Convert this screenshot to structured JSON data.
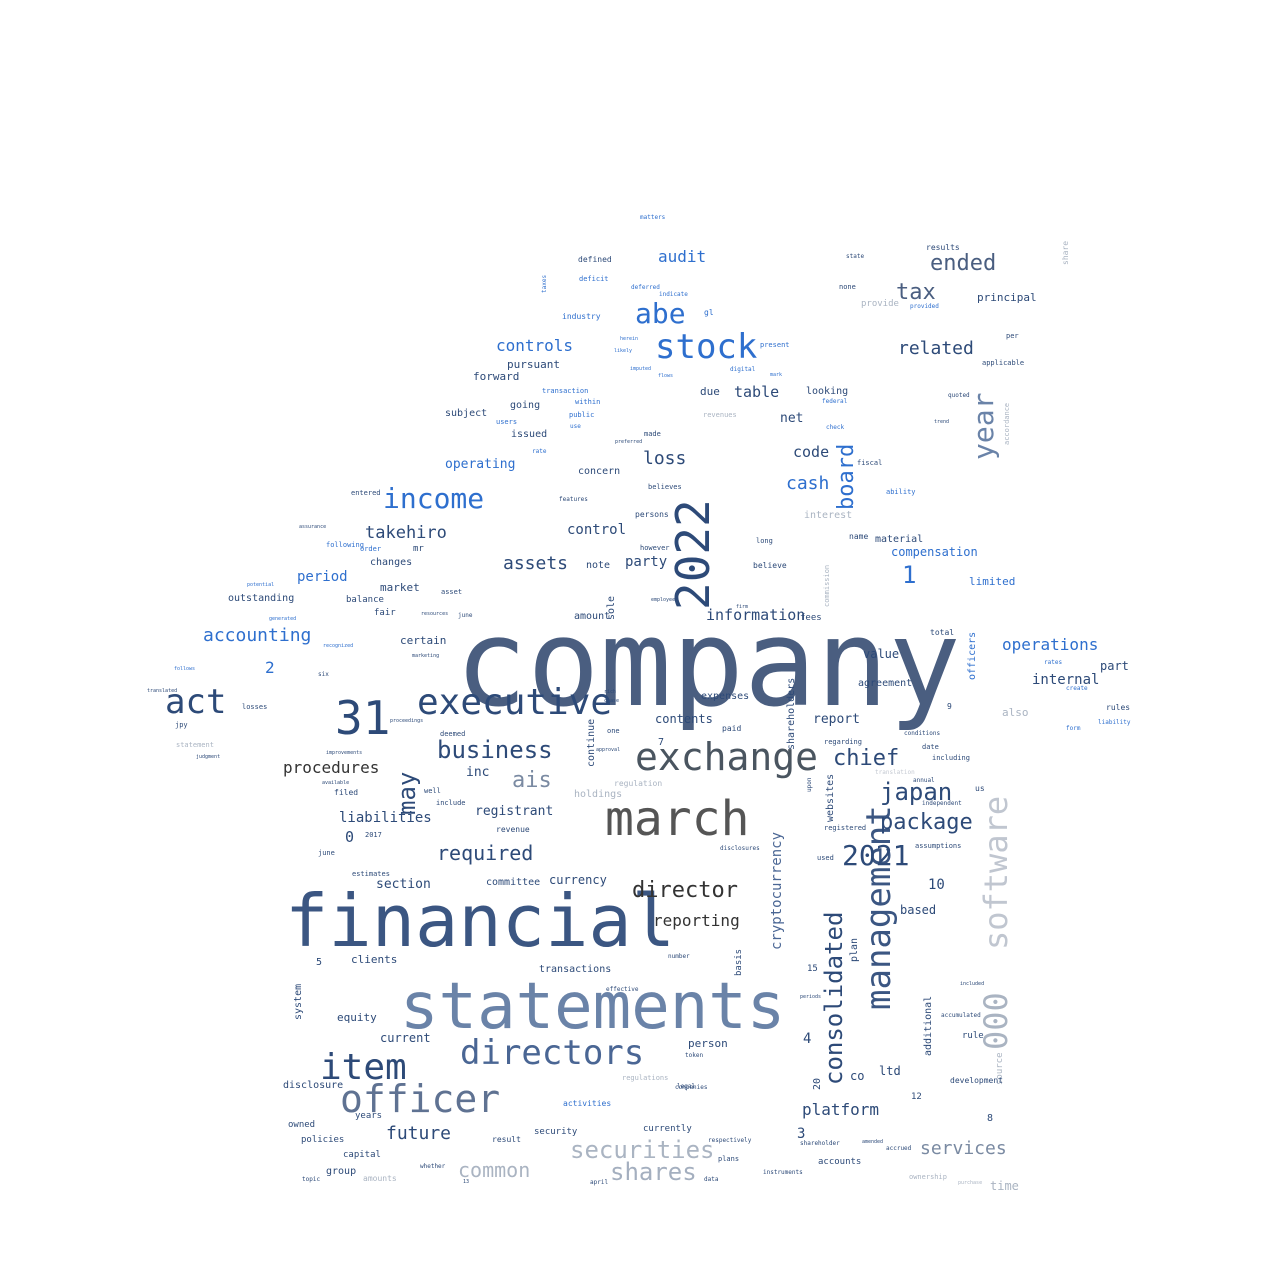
{
  "palette": {
    "dark_navy": "#2d4a78",
    "slate": "#4a5e80",
    "blue": "#2e6fce",
    "steel": "#5f7fa8",
    "gray": "#555555",
    "light": "#aab4c2",
    "pale": "#c4c9d2"
  },
  "words": [
    {
      "w": "company",
      "c": "#4a5e80"
    },
    {
      "w": "financial",
      "c": "#3b5682"
    },
    {
      "w": "statements",
      "c": "#6a83a8"
    },
    {
      "w": "march",
      "c": "#555555"
    },
    {
      "w": "exchange",
      "c": "#4a5560"
    },
    {
      "w": "executive",
      "c": "#2d4a78"
    },
    {
      "w": "2022",
      "c": "#2d4a78"
    },
    {
      "w": "31",
      "c": "#2d4a78"
    },
    {
      "w": "directors",
      "c": "#4a6694"
    },
    {
      "w": "item",
      "c": "#2d4a78"
    },
    {
      "w": "officer",
      "c": "#5f7292"
    },
    {
      "w": "software",
      "c": "#c0c6d0"
    },
    {
      "w": "management",
      "c": "#3b5682"
    },
    {
      "w": "stock",
      "c": "#2e6fce"
    },
    {
      "w": "act",
      "c": "#2d4a78"
    },
    {
      "w": "income",
      "c": "#2e6fce"
    },
    {
      "w": "abe",
      "c": "#2e6fce"
    },
    {
      "w": "business",
      "c": "#2d4a78"
    },
    {
      "w": "year",
      "c": "#6a83a8"
    },
    {
      "w": "consolidated",
      "c": "#2d4a78"
    },
    {
      "w": "2021",
      "c": "#2d4a78"
    },
    {
      "w": "securities",
      "c": "#aab4c2"
    },
    {
      "w": "shares",
      "c": "#a4afbf"
    },
    {
      "w": "000",
      "c": "#aab4c2"
    },
    {
      "w": "package",
      "c": "#2d4a78"
    },
    {
      "w": "japan",
      "c": "#2d4a78"
    },
    {
      "w": "chief",
      "c": "#2d4a78"
    },
    {
      "w": "ais",
      "c": "#7a8aa2"
    },
    {
      "w": "director",
      "c": "#333333"
    },
    {
      "w": "services",
      "c": "#7a8aa2"
    },
    {
      "w": "common",
      "c": "#aab4c2"
    },
    {
      "w": "tax",
      "c": "#4a5e80"
    },
    {
      "w": "ended",
      "c": "#4a5e80"
    },
    {
      "w": "related",
      "c": "#2d4a78"
    },
    {
      "w": "board",
      "c": "#2e6fce"
    },
    {
      "w": "required",
      "c": "#2d4a78"
    },
    {
      "w": "future",
      "c": "#2d4a78"
    },
    {
      "w": "may",
      "c": "#2d4a78"
    },
    {
      "w": "platform",
      "c": "#2d4a78"
    },
    {
      "w": "procedures",
      "c": "#333333"
    },
    {
      "w": "accounting",
      "c": "#2e6fce"
    },
    {
      "w": "cash",
      "c": "#2e6fce"
    },
    {
      "w": "loss",
      "c": "#2d4a78"
    },
    {
      "w": "assets",
      "c": "#2d4a78"
    },
    {
      "w": "audit",
      "c": "#2e6fce"
    },
    {
      "w": "controls",
      "c": "#2e6fce"
    },
    {
      "w": "takehiro",
      "c": "#2d4a78"
    },
    {
      "w": "1",
      "c": "#2e6fce"
    },
    {
      "w": "cryptocurrency",
      "c": "#4a6694"
    },
    {
      "w": "operations",
      "c": "#2e6fce"
    },
    {
      "w": "information",
      "c": "#2d4a78"
    },
    {
      "w": "reporting",
      "c": "#333333"
    },
    {
      "w": "liabilities",
      "c": "#2d4a78"
    },
    {
      "w": "table",
      "c": "#2d4a78"
    },
    {
      "w": "period",
      "c": "#2e6fce"
    },
    {
      "w": "code",
      "c": "#2d4a78"
    },
    {
      "w": "section",
      "c": "#2d4a78"
    },
    {
      "w": "internal",
      "c": "#2d4a78"
    },
    {
      "w": "operating",
      "c": "#2e6fce"
    },
    {
      "w": "principal",
      "c": "#2d4a78"
    },
    {
      "w": "party",
      "c": "#2d4a78"
    },
    {
      "w": "net",
      "c": "#2d4a78"
    },
    {
      "w": "control",
      "c": "#2d4a78"
    },
    {
      "w": "value",
      "c": "#2d4a78"
    },
    {
      "w": "registrant",
      "c": "#2d4a78"
    },
    {
      "w": "report",
      "c": "#2d4a78"
    },
    {
      "w": "10",
      "c": "#2d4a78"
    },
    {
      "w": "contents",
      "c": "#2d4a78"
    },
    {
      "w": "compensation",
      "c": "#2e6fce"
    },
    {
      "w": "currency",
      "c": "#2d4a78"
    },
    {
      "w": "inc",
      "c": "#2d4a78"
    },
    {
      "w": "time",
      "c": "#aab4c2"
    },
    {
      "w": "pursuant",
      "c": "#2d4a78"
    },
    {
      "w": "limited",
      "c": "#2e6fce"
    },
    {
      "w": "forward",
      "c": "#2d4a78"
    },
    {
      "w": "agreement",
      "c": "#2d4a78"
    },
    {
      "w": "2",
      "c": "#2e6fce"
    },
    {
      "w": "0",
      "c": "#2d4a78"
    },
    {
      "w": "4",
      "c": "#2d4a78"
    },
    {
      "w": "3",
      "c": "#2d4a78"
    },
    {
      "w": "ltd",
      "c": "#2d4a78"
    },
    {
      "w": "co",
      "c": "#2d4a78"
    },
    {
      "w": "market",
      "c": "#2d4a78"
    },
    {
      "w": "equity",
      "c": "#2d4a78"
    },
    {
      "w": "current",
      "c": "#2d4a78"
    },
    {
      "w": "clients",
      "c": "#2d4a78"
    },
    {
      "w": "person",
      "c": "#2d4a78"
    },
    {
      "w": "committee",
      "c": "#2d4a78"
    },
    {
      "w": "transactions",
      "c": "#2d4a78"
    },
    {
      "w": "based",
      "c": "#2d4a78"
    },
    {
      "w": "part",
      "c": "#2d4a78"
    },
    {
      "w": "due",
      "c": "#2d4a78"
    },
    {
      "w": "going",
      "c": "#2d4a78"
    },
    {
      "w": "issued",
      "c": "#2d4a78"
    },
    {
      "w": "certain",
      "c": "#2d4a78"
    },
    {
      "w": "amount",
      "c": "#2d4a78"
    },
    {
      "w": "note",
      "c": "#2d4a78"
    },
    {
      "w": "changes",
      "c": "#2d4a78"
    },
    {
      "w": "outstanding",
      "c": "#2d4a78"
    },
    {
      "w": "subject",
      "c": "#2d4a78"
    },
    {
      "w": "concern",
      "c": "#2d4a78"
    },
    {
      "w": "also",
      "c": "#aab4c2"
    },
    {
      "w": "interest",
      "c": "#aab4c2"
    },
    {
      "w": "looking",
      "c": "#2d4a78"
    },
    {
      "w": "material",
      "c": "#2d4a78"
    },
    {
      "w": "expenses",
      "c": "#2d4a78"
    },
    {
      "w": "holdings",
      "c": "#aab4c2"
    },
    {
      "w": "disclosure",
      "c": "#2d4a78"
    },
    {
      "w": "officers",
      "c": "#2e6fce"
    },
    {
      "w": "additional",
      "c": "#2d4a78"
    },
    {
      "w": "websites",
      "c": "#2d4a78"
    },
    {
      "w": "shareholders",
      "c": "#2d4a78"
    },
    {
      "w": "continue",
      "c": "#2d4a78"
    },
    {
      "w": "system",
      "c": "#2d4a78"
    },
    {
      "w": "sole",
      "c": "#2d4a78"
    },
    {
      "w": "plan",
      "c": "#2d4a78"
    },
    {
      "w": "basis",
      "c": "#2d4a78"
    },
    {
      "w": "source",
      "c": "#aab4c2"
    },
    {
      "w": "mr",
      "c": "#2d4a78"
    },
    {
      "w": "balance",
      "c": "#2d4a78"
    },
    {
      "w": "fair",
      "c": "#2d4a78"
    },
    {
      "w": "filed",
      "c": "#2d4a78"
    },
    {
      "w": "owned",
      "c": "#2d4a78"
    },
    {
      "w": "policies",
      "c": "#2d4a78"
    },
    {
      "w": "capital",
      "c": "#2d4a78"
    },
    {
      "w": "group",
      "c": "#2d4a78"
    },
    {
      "w": "years",
      "c": "#2d4a78"
    },
    {
      "w": "security",
      "c": "#2d4a78"
    },
    {
      "w": "result",
      "c": "#2d4a78"
    },
    {
      "w": "currently",
      "c": "#2d4a78"
    },
    {
      "w": "accounts",
      "c": "#2d4a78"
    },
    {
      "w": "activities",
      "c": "#2e6fce"
    },
    {
      "w": "rule",
      "c": "#2d4a78"
    },
    {
      "w": "development",
      "c": "#2d4a78"
    },
    {
      "w": "fees",
      "c": "#2d4a78"
    },
    {
      "w": "believe",
      "c": "#2d4a78"
    },
    {
      "w": "amounts",
      "c": "#aab4c2"
    },
    {
      "w": "12",
      "c": "#2d4a78"
    },
    {
      "w": "15",
      "c": "#2d4a78"
    },
    {
      "w": "5",
      "c": "#2d4a78"
    },
    {
      "w": "7",
      "c": "#2d4a78"
    },
    {
      "w": "8",
      "c": "#2d4a78"
    },
    {
      "w": "9",
      "c": "#2d4a78"
    },
    {
      "w": "20",
      "c": "#2d4a78"
    },
    {
      "w": "entered",
      "c": "#2d4a78"
    },
    {
      "w": "following",
      "c": "#2e6fce"
    },
    {
      "w": "order",
      "c": "#2e6fce"
    },
    {
      "w": "transaction",
      "c": "#2e6fce"
    },
    {
      "w": "industry",
      "c": "#2e6fce"
    },
    {
      "w": "defined",
      "c": "#2d4a78"
    },
    {
      "w": "deficit",
      "c": "#2e6fce"
    },
    {
      "w": "deferred",
      "c": "#2e6fce"
    },
    {
      "w": "indicate",
      "c": "#2e6fce"
    },
    {
      "w": "results",
      "c": "#2d4a78"
    },
    {
      "w": "provide",
      "c": "#aab4c2"
    },
    {
      "w": "share",
      "c": "#aab4c2"
    },
    {
      "w": "none",
      "c": "#2d4a78"
    },
    {
      "w": "state",
      "c": "#2d4a78"
    },
    {
      "w": "fiscal",
      "c": "#2d4a78"
    },
    {
      "w": "ability",
      "c": "#2e6fce"
    },
    {
      "w": "federal",
      "c": "#2e6fce"
    },
    {
      "w": "present",
      "c": "#2e6fce"
    },
    {
      "w": "digital",
      "c": "#2e6fce"
    },
    {
      "w": "users",
      "c": "#2e6fce"
    },
    {
      "w": "public",
      "c": "#2e6fce"
    },
    {
      "w": "use",
      "c": "#2e6fce"
    },
    {
      "w": "within",
      "c": "#2e6fce"
    },
    {
      "w": "made",
      "c": "#2d4a78"
    },
    {
      "w": "believes",
      "c": "#2d4a78"
    },
    {
      "w": "persons",
      "c": "#2d4a78"
    },
    {
      "w": "however",
      "c": "#2d4a78"
    },
    {
      "w": "long",
      "c": "#2d4a78"
    },
    {
      "w": "name",
      "c": "#2d4a78"
    },
    {
      "w": "total",
      "c": "#2d4a78"
    },
    {
      "w": "date",
      "c": "#2d4a78"
    },
    {
      "w": "including",
      "c": "#2d4a78"
    },
    {
      "w": "annual",
      "c": "#2d4a78"
    },
    {
      "w": "us",
      "c": "#2d4a78"
    },
    {
      "w": "registered",
      "c": "#2d4a78"
    },
    {
      "w": "used",
      "c": "#2d4a78"
    },
    {
      "w": "assumptions",
      "c": "#2d4a78"
    },
    {
      "w": "accumulated",
      "c": "#2d4a78"
    },
    {
      "w": "paid",
      "c": "#2d4a78"
    },
    {
      "w": "one",
      "c": "#2d4a78"
    },
    {
      "w": "deemed",
      "c": "#2d4a78"
    },
    {
      "w": "include",
      "c": "#2d4a78"
    },
    {
      "w": "well",
      "c": "#2d4a78"
    },
    {
      "w": "revenue",
      "c": "#2d4a78"
    },
    {
      "w": "asset",
      "c": "#2d4a78"
    },
    {
      "w": "june",
      "c": "#2d4a78"
    },
    {
      "w": "2017",
      "c": "#2d4a78"
    },
    {
      "w": "estimates",
      "c": "#2d4a78"
    },
    {
      "w": "regulation",
      "c": "#aab4c2"
    },
    {
      "w": "regulations",
      "c": "#aab4c2"
    },
    {
      "w": "revenues",
      "c": "#aab4c2"
    },
    {
      "w": "statement",
      "c": "#aab4c2"
    },
    {
      "w": "commission",
      "c": "#aab4c2"
    },
    {
      "w": "accordance",
      "c": "#aab4c2"
    },
    {
      "w": "respectively",
      "c": "#2d4a78"
    },
    {
      "w": "plans",
      "c": "#2d4a78"
    },
    {
      "w": "april",
      "c": "#2d4a78"
    },
    {
      "w": "whether",
      "c": "#2d4a78"
    },
    {
      "w": "data",
      "c": "#2d4a78"
    },
    {
      "w": "topic",
      "c": "#2d4a78"
    },
    {
      "w": "ownership",
      "c": "#aab4c2"
    },
    {
      "w": "purchase",
      "c": "#aab4c2"
    },
    {
      "w": "instruments",
      "c": "#2d4a78"
    },
    {
      "w": "shareholder",
      "c": "#2d4a78"
    },
    {
      "w": "accrued",
      "c": "#2d4a78"
    },
    {
      "w": "effective",
      "c": "#2d4a78"
    },
    {
      "w": "number",
      "c": "#2d4a78"
    },
    {
      "w": "upon",
      "c": "#2d4a78"
    },
    {
      "w": "regarding",
      "c": "#2d4a78"
    },
    {
      "w": "independent",
      "c": "#2d4a78"
    },
    {
      "w": "matters",
      "c": "#2e6fce"
    },
    {
      "w": "taxes",
      "c": "#2e6fce"
    },
    {
      "w": "gl",
      "c": "#2e6fce"
    },
    {
      "w": "rate",
      "c": "#2e6fce"
    },
    {
      "w": "jpy",
      "c": "#2d4a78"
    },
    {
      "w": "losses",
      "c": "#2d4a78"
    },
    {
      "w": "generated",
      "c": "#2e6fce"
    },
    {
      "w": "recognized",
      "c": "#2e6fce"
    },
    {
      "w": "rates",
      "c": "#2e6fce"
    },
    {
      "w": "create",
      "c": "#2e6fce"
    },
    {
      "w": "rules",
      "c": "#2d4a78"
    },
    {
      "w": "liability",
      "c": "#2e6fce"
    },
    {
      "w": "form",
      "c": "#2e6fce"
    },
    {
      "w": "conditions",
      "c": "#2d4a78"
    },
    {
      "w": "provided",
      "c": "#2e6fce"
    },
    {
      "w": "applicable",
      "c": "#2d4a78"
    },
    {
      "w": "per",
      "c": "#2d4a78"
    },
    {
      "w": "quoted",
      "c": "#2d4a78"
    },
    {
      "w": "trend",
      "c": "#2d4a78"
    },
    {
      "w": "check",
      "c": "#2e6fce"
    },
    {
      "w": "mark",
      "c": "#2e6fce"
    },
    {
      "w": "flows",
      "c": "#2e6fce"
    },
    {
      "w": "imputed",
      "c": "#2e6fce"
    },
    {
      "w": "likely",
      "c": "#2e6fce"
    },
    {
      "w": "herein",
      "c": "#2e6fce"
    },
    {
      "w": "preferred",
      "c": "#2d4a78"
    },
    {
      "w": "features",
      "c": "#2d4a78"
    },
    {
      "w": "assurance",
      "c": "#2d4a78"
    },
    {
      "w": "improvements",
      "c": "#2d4a78"
    },
    {
      "w": "available",
      "c": "#2d4a78"
    },
    {
      "w": "judgment",
      "c": "#2d4a78"
    },
    {
      "w": "translated",
      "c": "#2d4a78"
    },
    {
      "w": "follows",
      "c": "#2e6fce"
    },
    {
      "w": "potential",
      "c": "#2e6fce"
    },
    {
      "w": "resources",
      "c": "#2d4a78"
    },
    {
      "w": "marketing",
      "c": "#2d4a78"
    },
    {
      "w": "proceedings",
      "c": "#2d4a78"
    },
    {
      "w": "legal",
      "c": "#2d4a78"
    },
    {
      "w": "token",
      "c": "#2d4a78"
    },
    {
      "w": "disclosures",
      "c": "#2d4a78"
    },
    {
      "w": "periods",
      "c": "#2d4a78"
    },
    {
      "w": "included",
      "c": "#2d4a78"
    },
    {
      "w": "companies",
      "c": "#2d4a78"
    },
    {
      "w": "translation",
      "c": "#c4c9d2"
    },
    {
      "w": "amended",
      "c": "#2d4a78"
    },
    {
      "w": "employees",
      "c": "#2d4a78"
    },
    {
      "w": "rich",
      "c": "#2d4a78"
    },
    {
      "w": "firm",
      "c": "#2d4a78"
    },
    {
      "w": "approval",
      "c": "#2d4a78"
    },
    {
      "w": "cease",
      "c": "#2d4a78"
    },
    {
      "w": "six",
      "c": "#2d4a78"
    },
    {
      "w": "june",
      "c": "#2d4a78"
    },
    {
      "w": "13",
      "c": "#2d4a78"
    },
    {
      "w": "6",
      "c": "#2d4a78"
    },
    {
      "w": "2019",
      "c": "#2d4a78"
    }
  ]
}
